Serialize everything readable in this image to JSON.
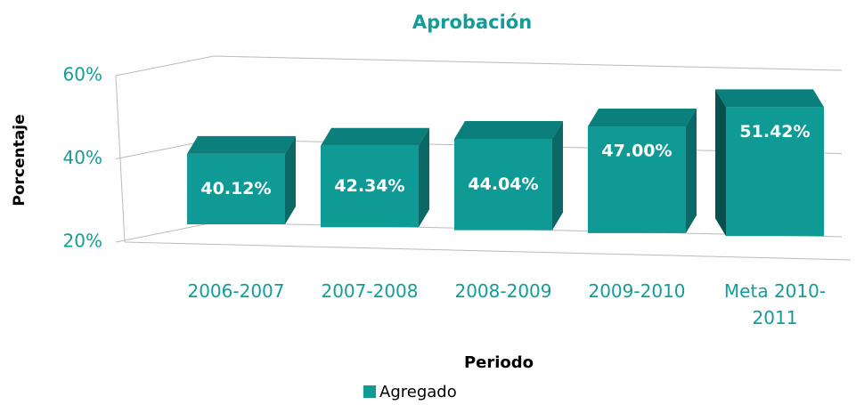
{
  "chart_data": {
    "type": "bar3d",
    "title": "Aprobación",
    "categories": [
      "2006-2007",
      "2007-2008",
      "2008-2009",
      "2009-2010",
      "Meta 2010-2011"
    ],
    "series": [
      {
        "name": "Agregado",
        "color": "#0f9a95",
        "values": [
          40.12,
          42.34,
          44.04,
          47.0,
          51.42
        ],
        "value_labels": [
          "40.12%",
          "42.34%",
          "44.04%",
          "47.00%",
          "51.42%"
        ]
      }
    ],
    "ylim": [
      20,
      60
    ],
    "yticks": [
      {
        "value": 20,
        "label": "20%"
      },
      {
        "value": 40,
        "label": "40%"
      },
      {
        "value": 60,
        "label": "60%"
      }
    ],
    "xlabel": "Periodo",
    "ylabel": "Porcentaje",
    "grid": true,
    "legend": "bottom"
  }
}
